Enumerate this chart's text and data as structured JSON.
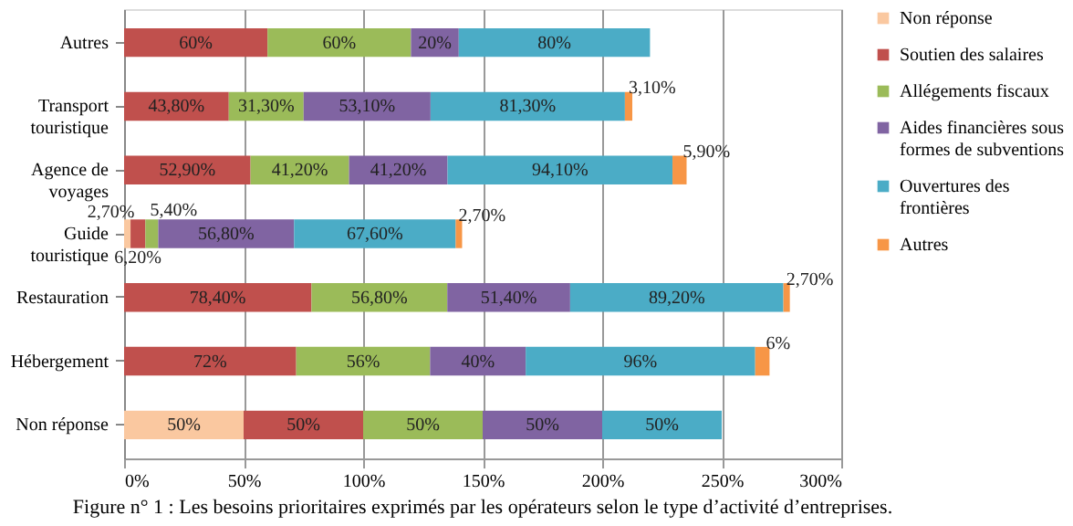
{
  "chart_data": {
    "type": "bar",
    "orientation": "horizontal",
    "stacked": true,
    "categories": [
      "Autres",
      "Transport touristique",
      "Agence de voyages",
      "Guide touristique",
      "Restauration",
      "Hébergement",
      "Non réponse"
    ],
    "series": [
      {
        "name": "Non réponse",
        "color": "#fac8a0",
        "values": [
          null,
          null,
          null,
          2.7,
          null,
          null,
          50
        ],
        "value_labels": [
          null,
          null,
          null,
          "2,70%",
          null,
          null,
          "50%"
        ]
      },
      {
        "name": "Soutien des salaires",
        "color": "#c0504d",
        "values": [
          60,
          43.8,
          52.9,
          6.2,
          78.4,
          72,
          50
        ],
        "value_labels": [
          "60%",
          "43,80%",
          "52,90%",
          "6,20%",
          "78,40%",
          "72%",
          "50%"
        ]
      },
      {
        "name": "Allégements fiscaux",
        "color": "#9bbb59",
        "values": [
          60,
          31.3,
          41.2,
          5.4,
          56.8,
          56,
          50
        ],
        "value_labels": [
          "60%",
          "31,30%",
          "41,20%",
          "5,40%",
          "56,80%",
          "56%",
          "50%"
        ]
      },
      {
        "name": "Aides financières sous formes de subventions",
        "color": "#8064a2",
        "values": [
          20,
          53.1,
          41.2,
          56.8,
          51.4,
          40,
          50
        ],
        "value_labels": [
          "20%",
          "53,10%",
          "41,20%",
          "56,80%",
          "51,40%",
          "40%",
          "50%"
        ]
      },
      {
        "name": "Ouvertures des frontières",
        "color": "#4bacc6",
        "values": [
          80,
          81.3,
          94.1,
          67.6,
          89.2,
          96,
          50
        ],
        "value_labels": [
          "80%",
          "81,30%",
          "94,10%",
          "67,60%",
          "89,20%",
          "96%",
          "50%"
        ]
      },
      {
        "name": "Autres",
        "color": "#f79646",
        "values": [
          null,
          3.1,
          5.9,
          2.7,
          2.7,
          6,
          null
        ],
        "value_labels": [
          null,
          "3,10%",
          "5,90%",
          "2,70%",
          "2,70%",
          "6%",
          null
        ]
      }
    ],
    "xlim": [
      0,
      300
    ],
    "xticks": [
      {
        "value": 0,
        "label": "0%"
      },
      {
        "value": 50,
        "label": "50%"
      },
      {
        "value": 100,
        "label": "100%"
      },
      {
        "value": 150,
        "label": "150%"
      },
      {
        "value": 200,
        "label": "200%"
      },
      {
        "value": 250,
        "label": "250%"
      },
      {
        "value": 300,
        "label": "300%"
      }
    ],
    "grid": "x",
    "legend": "right",
    "annotations": [
      "Figure n° 1 : Les besoins prioritaires exprimés par les opérateurs selon le type d’activité d’entreprises."
    ]
  }
}
